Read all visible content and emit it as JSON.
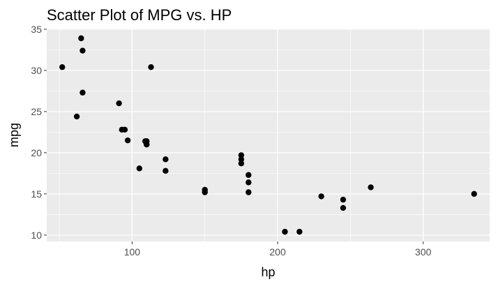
{
  "chart_data": {
    "type": "scatter",
    "title": "Scatter Plot of MPG vs. HP",
    "xlabel": "hp",
    "ylabel": "mpg",
    "xlim": [
      41.35,
      345.65
    ],
    "ylim": [
      9.225,
      35.075
    ],
    "x_ticks": [
      100,
      200,
      300
    ],
    "y_ticks": [
      10,
      15,
      20,
      25,
      30,
      35
    ],
    "x_tick_labels": [
      "100",
      "200",
      "300"
    ],
    "y_tick_labels": [
      "10",
      "15",
      "20",
      "25",
      "30",
      "35"
    ],
    "grid": true,
    "point_color": "#000000",
    "panel_background": "#ebebeb",
    "gridline_color": "#ffffff",
    "points": [
      {
        "x": 110,
        "y": 21.0
      },
      {
        "x": 110,
        "y": 21.0
      },
      {
        "x": 93,
        "y": 22.8
      },
      {
        "x": 110,
        "y": 21.4
      },
      {
        "x": 175,
        "y": 18.7
      },
      {
        "x": 105,
        "y": 18.1
      },
      {
        "x": 245,
        "y": 14.3
      },
      {
        "x": 62,
        "y": 24.4
      },
      {
        "x": 95,
        "y": 22.8
      },
      {
        "x": 123,
        "y": 19.2
      },
      {
        "x": 123,
        "y": 17.8
      },
      {
        "x": 180,
        "y": 16.4
      },
      {
        "x": 180,
        "y": 17.3
      },
      {
        "x": 180,
        "y": 15.2
      },
      {
        "x": 205,
        "y": 10.4
      },
      {
        "x": 215,
        "y": 10.4
      },
      {
        "x": 230,
        "y": 14.7
      },
      {
        "x": 66,
        "y": 32.4
      },
      {
        "x": 52,
        "y": 30.4
      },
      {
        "x": 65,
        "y": 33.9
      },
      {
        "x": 97,
        "y": 21.5
      },
      {
        "x": 150,
        "y": 15.5
      },
      {
        "x": 150,
        "y": 15.2
      },
      {
        "x": 245,
        "y": 13.3
      },
      {
        "x": 175,
        "y": 19.2
      },
      {
        "x": 66,
        "y": 27.3
      },
      {
        "x": 91,
        "y": 26.0
      },
      {
        "x": 113,
        "y": 30.4
      },
      {
        "x": 264,
        "y": 15.8
      },
      {
        "x": 175,
        "y": 19.7
      },
      {
        "x": 335,
        "y": 15.0
      },
      {
        "x": 109,
        "y": 21.4
      }
    ]
  }
}
